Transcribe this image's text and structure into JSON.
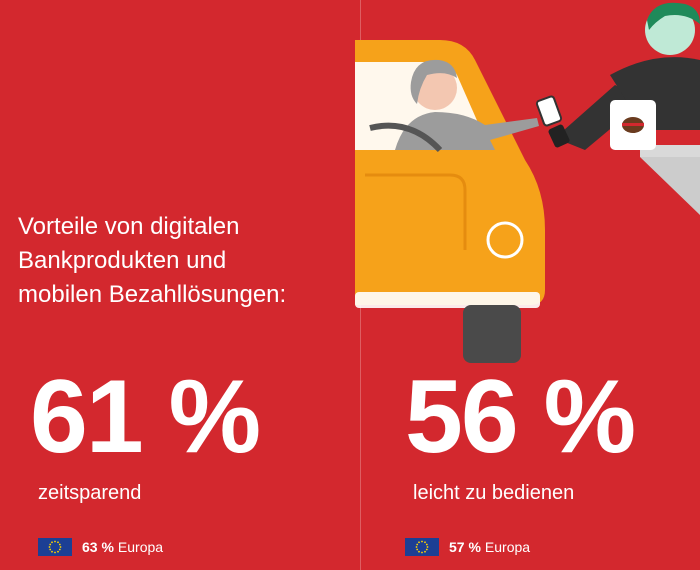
{
  "headline": {
    "line1": "Vorteile von digitalen",
    "line2": "Bankprodukten und",
    "line3": "mobilen Bezahllösungen:"
  },
  "stats": [
    {
      "value": "61 %",
      "label": "zeitsparend",
      "europe_value": "63 %",
      "europe_label": "Europa"
    },
    {
      "value": "56 %",
      "label": "leicht zu bedienen",
      "europe_value": "57 %",
      "europe_label": "Europa"
    }
  ],
  "icons": {
    "flag": "eu-flag-icon",
    "illustration": "drive-through-payment-illustration"
  },
  "colors": {
    "background": "#d3282e",
    "car": "#f6a21a",
    "text": "#ffffff",
    "flag": "#1c3f94"
  }
}
